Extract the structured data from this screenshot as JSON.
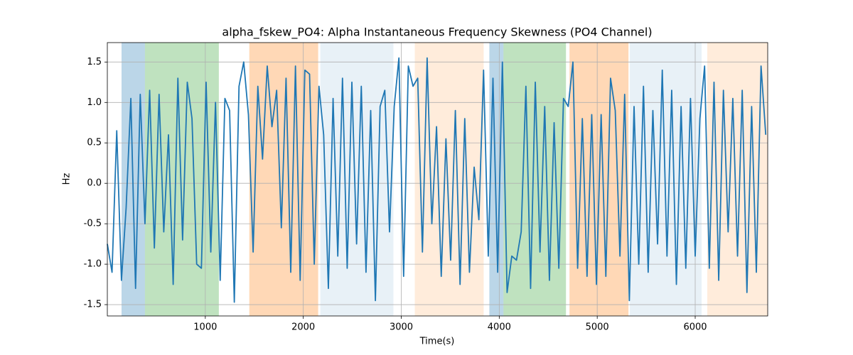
{
  "chart_data": {
    "type": "line",
    "title": "alpha_fskew_PO4: Alpha Instantaneous Frequency Skewness (PO4 Channel)",
    "xlabel": "Time(s)",
    "ylabel": "Hz",
    "color": "#1f77b4",
    "grid": true,
    "xlim": [
      0,
      6740
    ],
    "ylim": [
      -1.64,
      1.74
    ],
    "xticks": [
      1000,
      2000,
      3000,
      4000,
      5000,
      6000
    ],
    "yticks": [
      -1.5,
      {
        "value": -1,
        "label": "-1.0"
      },
      -0.5,
      {
        "value": 0,
        "label": "0.0"
      },
      0.5,
      {
        "value": 1,
        "label": "1.0"
      },
      1.5
    ],
    "spans": [
      {
        "start": 145,
        "end": 384,
        "color": "#1f77b4",
        "opacity": 0.3
      },
      {
        "start": 384,
        "end": 1138,
        "color": "#2ca02c",
        "opacity": 0.3
      },
      {
        "start": 1449,
        "end": 2152,
        "color": "#ff7f0e",
        "opacity": 0.3
      },
      {
        "start": 2174,
        "end": 2920,
        "color": "#1f77b4",
        "opacity": 0.1
      },
      {
        "start": 3138,
        "end": 3841,
        "color": "#ff7f0e",
        "opacity": 0.15
      },
      {
        "start": 3899,
        "end": 4043,
        "color": "#1f77b4",
        "opacity": 0.3
      },
      {
        "start": 4043,
        "end": 4681,
        "color": "#2ca02c",
        "opacity": 0.3
      },
      {
        "start": 4717,
        "end": 5319,
        "color": "#ff7f0e",
        "opacity": 0.3
      },
      {
        "start": 5333,
        "end": 6065,
        "color": "#1f77b4",
        "opacity": 0.1
      },
      {
        "start": 6123,
        "end": 6740,
        "color": "#ff7f0e",
        "opacity": 0.15
      }
    ],
    "x": [
      0,
      48,
      96,
      144,
      192,
      240,
      288,
      336,
      384,
      432,
      480,
      528,
      576,
      624,
      672,
      720,
      768,
      816,
      864,
      912,
      960,
      1008,
      1056,
      1104,
      1152,
      1200,
      1248,
      1296,
      1344,
      1392,
      1440,
      1488,
      1536,
      1584,
      1632,
      1680,
      1728,
      1776,
      1824,
      1872,
      1920,
      1968,
      2016,
      2064,
      2112,
      2160,
      2208,
      2256,
      2304,
      2352,
      2400,
      2448,
      2496,
      2544,
      2592,
      2640,
      2688,
      2736,
      2784,
      2832,
      2880,
      2928,
      2976,
      3024,
      3072,
      3120,
      3168,
      3216,
      3264,
      3312,
      3360,
      3408,
      3456,
      3504,
      3552,
      3600,
      3648,
      3696,
      3744,
      3792,
      3840,
      3888,
      3936,
      3984,
      4032,
      4080,
      4128,
      4176,
      4224,
      4272,
      4320,
      4368,
      4416,
      4464,
      4512,
      4560,
      4608,
      4656,
      4704,
      4752,
      4800,
      4848,
      4896,
      4944,
      4992,
      5040,
      5088,
      5136,
      5184,
      5232,
      5280,
      5328,
      5376,
      5424,
      5472,
      5520,
      5568,
      5616,
      5664,
      5712,
      5760,
      5808,
      5856,
      5904,
      5952,
      6000,
      6048,
      6096,
      6144,
      6192,
      6240,
      6288,
      6336,
      6384,
      6432,
      6480,
      6528,
      6576,
      6624,
      6672,
      6720
    ],
    "values": [
      -0.75,
      -1.1,
      0.65,
      -1.2,
      -0.3,
      1.05,
      -1.3,
      1.1,
      -0.5,
      1.15,
      -0.8,
      1.1,
      -0.6,
      0.6,
      -1.25,
      1.3,
      -0.7,
      1.25,
      0.8,
      -1.0,
      -1.05,
      1.25,
      -0.85,
      1.0,
      -1.2,
      1.05,
      0.9,
      -1.47,
      1.2,
      1.5,
      0.85,
      -0.85,
      1.2,
      0.3,
      1.45,
      0.7,
      1.15,
      -0.55,
      1.3,
      -1.1,
      1.45,
      -1.2,
      1.4,
      1.35,
      -1.0,
      1.2,
      0.6,
      -1.3,
      1.05,
      -0.9,
      1.3,
      -1.05,
      1.25,
      -0.75,
      1.2,
      -1.1,
      0.9,
      -1.45,
      0.95,
      1.15,
      -0.6,
      0.95,
      1.55,
      -1.15,
      1.45,
      1.2,
      1.3,
      -0.85,
      1.55,
      -0.5,
      0.7,
      -1.15,
      0.55,
      -0.95,
      0.9,
      -1.25,
      0.8,
      -1.1,
      0.2,
      -0.45,
      1.4,
      -0.9,
      1.3,
      -1.1,
      1.5,
      -1.35,
      -0.9,
      -0.95,
      -0.6,
      1.2,
      -1.3,
      1.25,
      -0.85,
      0.95,
      -1.2,
      0.75,
      -1.05,
      1.05,
      0.95,
      1.5,
      -1.05,
      0.8,
      -1.15,
      0.85,
      -1.25,
      0.85,
      -1.15,
      1.3,
      0.9,
      -0.9,
      1.1,
      -1.45,
      0.95,
      -1.0,
      1.2,
      -1.1,
      0.9,
      -0.75,
      1.4,
      -0.9,
      1.15,
      -1.25,
      0.95,
      -1.05,
      1.05,
      -0.9,
      0.8,
      1.45,
      -1.05,
      1.25,
      -1.2,
      1.15,
      -0.6,
      1.05,
      -0.9,
      1.15,
      -1.35,
      0.95,
      -1.1,
      1.45,
      0.6
    ]
  }
}
